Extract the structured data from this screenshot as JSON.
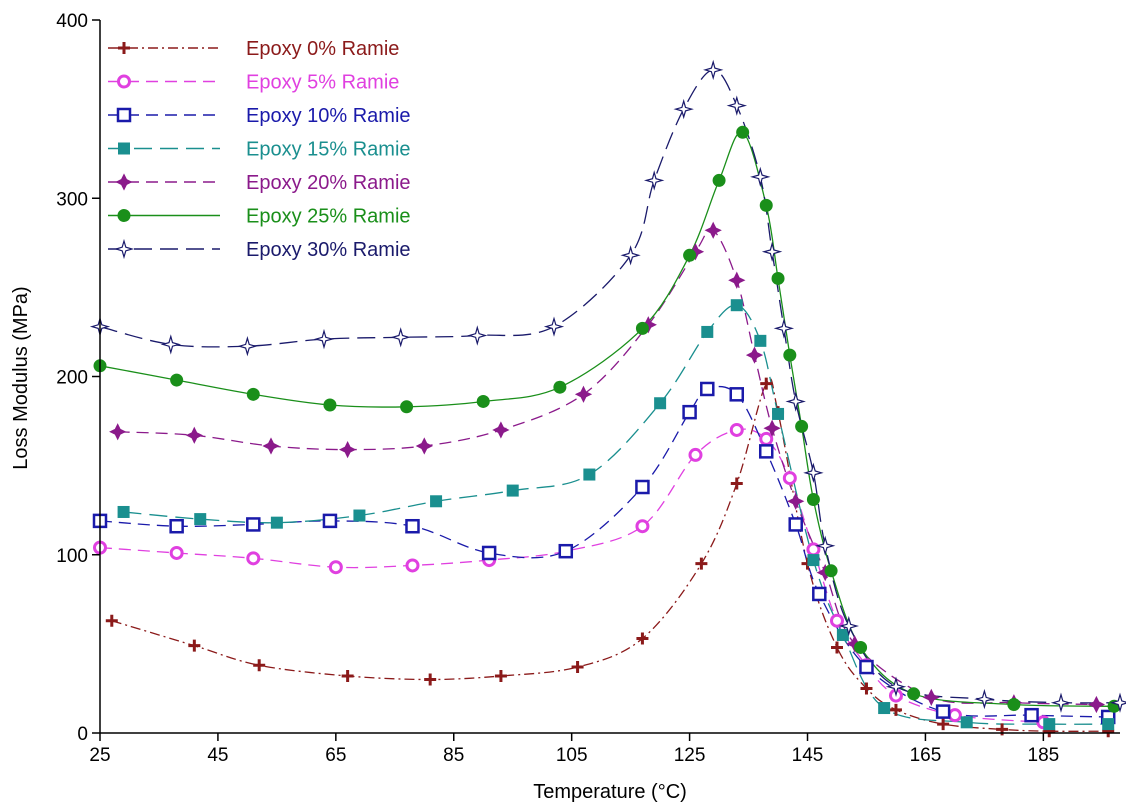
{
  "chart_data": {
    "type": "line",
    "title": "",
    "xlabel": "Temperature (°C)",
    "ylabel": "Loss Modulus (MPa)",
    "xlim": [
      25,
      198
    ],
    "ylim": [
      0,
      400
    ],
    "xticks": [
      25,
      45,
      65,
      85,
      105,
      125,
      145,
      165,
      185
    ],
    "xtick_labels": [
      "25",
      "45",
      "65",
      "85",
      "105",
      "125",
      "145",
      "165",
      "185"
    ],
    "yticks": [
      0,
      100,
      200,
      300,
      400
    ],
    "ytick_labels": [
      "0",
      "100",
      "200",
      "300",
      "400"
    ],
    "grid": false,
    "legend_position": "top-left",
    "series": [
      {
        "name": "Epoxy 0% Ramie",
        "color": "#8b1a1a",
        "marker": "plus",
        "dash": "dashdot",
        "x": [
          27,
          41,
          52,
          67,
          81,
          93,
          106,
          117,
          127,
          133,
          138,
          140,
          145,
          150,
          155,
          160,
          168,
          178,
          186,
          196
        ],
        "y": [
          63,
          49,
          38,
          32,
          30,
          32,
          37,
          53,
          95,
          140,
          196,
          180,
          95,
          48,
          25,
          13,
          5,
          2,
          1,
          1
        ]
      },
      {
        "name": "Epoxy 5% Ramie",
        "color": "#e040e0",
        "marker": "circle-open",
        "dash": "dash",
        "x": [
          25,
          38,
          51,
          65,
          78,
          91,
          104,
          117,
          126,
          133,
          138,
          142,
          146,
          150,
          155,
          160,
          170,
          185
        ],
        "y": [
          104,
          101,
          98,
          93,
          94,
          97,
          102,
          116,
          156,
          170,
          165,
          143,
          103,
          63,
          38,
          21,
          10,
          6
        ]
      },
      {
        "name": "Epoxy 10% Ramie",
        "color": "#1a1aaa",
        "marker": "square-open",
        "dash": "dash",
        "x": [
          25,
          38,
          51,
          64,
          78,
          91,
          104,
          117,
          125,
          128,
          133,
          138,
          143,
          147,
          155,
          168,
          183,
          196
        ],
        "y": [
          119,
          116,
          117,
          119,
          116,
          101,
          102,
          138,
          180,
          193,
          190,
          158,
          117,
          78,
          37,
          12,
          10,
          9
        ]
      },
      {
        "name": "Epoxy 15% Ramie",
        "color": "#1a8f8f",
        "marker": "square-filled",
        "dash": "longdash",
        "x": [
          29,
          42,
          55,
          69,
          82,
          95,
          108,
          120,
          128,
          133,
          137,
          140,
          146,
          151,
          158,
          172,
          186,
          196
        ],
        "y": [
          124,
          120,
          118,
          122,
          130,
          136,
          145,
          185,
          225,
          240,
          220,
          179,
          97,
          55,
          14,
          6,
          5,
          5
        ]
      },
      {
        "name": "Epoxy 20% Ramie",
        "color": "#8b1a8b",
        "marker": "star-filled",
        "dash": "dash",
        "x": [
          28,
          41,
          54,
          67,
          80,
          93,
          107,
          118,
          126,
          129,
          133,
          136,
          139,
          143,
          148,
          153,
          166,
          180,
          194
        ],
        "y": [
          169,
          167,
          161,
          159,
          161,
          170,
          190,
          229,
          270,
          282,
          254,
          212,
          171,
          130,
          90,
          50,
          20,
          17,
          16
        ]
      },
      {
        "name": "Epoxy 25% Ramie",
        "color": "#1a8f1a",
        "marker": "circle-filled",
        "dash": "solid",
        "x": [
          25,
          38,
          51,
          64,
          77,
          90,
          103,
          117,
          125,
          130,
          134,
          138,
          140,
          142,
          144,
          146,
          149,
          154,
          163,
          180,
          197
        ],
        "y": [
          206,
          198,
          190,
          184,
          183,
          186,
          194,
          227,
          268,
          310,
          337,
          296,
          255,
          212,
          172,
          131,
          91,
          48,
          22,
          16,
          15
        ]
      },
      {
        "name": "Epoxy 30% Ramie",
        "color": "#1a1a6b",
        "marker": "star-open",
        "dash": "longdash",
        "x": [
          25,
          37,
          50,
          63,
          76,
          89,
          102,
          115,
          119,
          124,
          129,
          133,
          137,
          139,
          141,
          143,
          146,
          148,
          152,
          160,
          175,
          188,
          198
        ],
        "y": [
          228,
          218,
          217,
          221,
          222,
          223,
          228,
          268,
          310,
          350,
          372,
          352,
          312,
          270,
          227,
          186,
          146,
          105,
          60,
          26,
          19,
          17,
          17
        ]
      }
    ]
  }
}
